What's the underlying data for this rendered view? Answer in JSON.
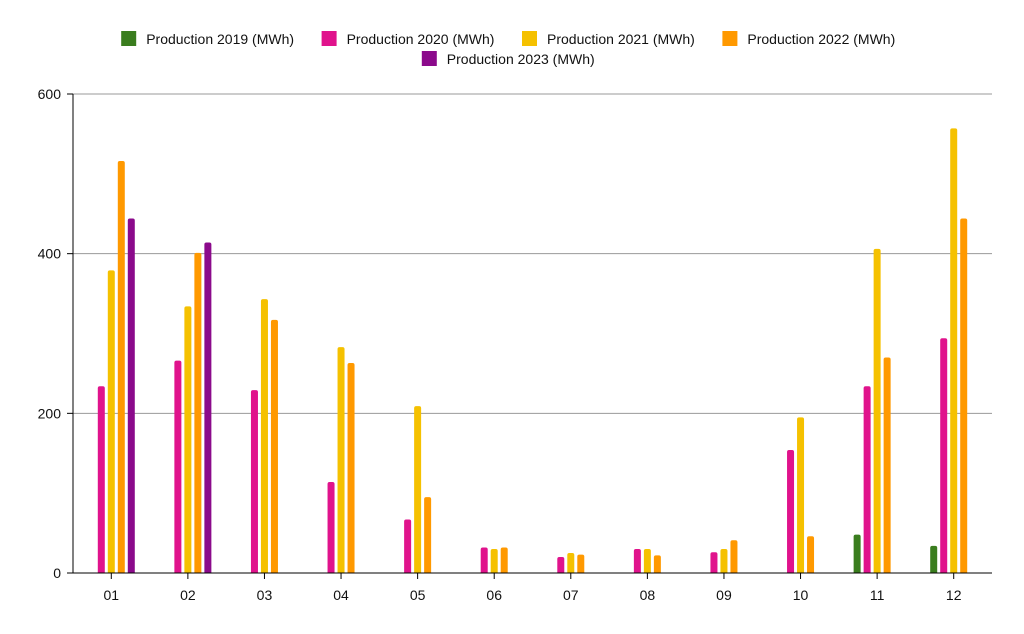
{
  "chart_data": {
    "type": "bar",
    "categories": [
      "01",
      "02",
      "03",
      "04",
      "05",
      "06",
      "07",
      "08",
      "09",
      "10",
      "11",
      "12"
    ],
    "series": [
      {
        "name": "Production 2019 (MWh)",
        "color": "#3a7d1e",
        "values": [
          0,
          0,
          0,
          0,
          0,
          0,
          0,
          0,
          0,
          0,
          48,
          34
        ]
      },
      {
        "name": "Production 2020 (MWh)",
        "color": "#e0138c",
        "values": [
          234,
          266,
          229,
          114,
          67,
          32,
          20,
          30,
          26,
          154,
          234,
          294
        ]
      },
      {
        "name": "Production 2021 (MWh)",
        "color": "#f5c100",
        "values": [
          379,
          334,
          343,
          283,
          209,
          30,
          25,
          30,
          30,
          195,
          406,
          557
        ]
      },
      {
        "name": "Production 2022 (MWh)",
        "color": "#ff9900",
        "values": [
          516,
          401,
          317,
          263,
          95,
          32,
          23,
          22,
          41,
          46,
          270,
          444
        ]
      },
      {
        "name": "Production 2023 (MWh)",
        "color": "#8b0a8b",
        "values": [
          444,
          414,
          0,
          0,
          0,
          0,
          0,
          0,
          0,
          0,
          0,
          0
        ]
      }
    ],
    "yticks": [
      0,
      200,
      400,
      600
    ],
    "ylim": [
      0,
      600
    ],
    "grid": true,
    "legend_position": "top-center"
  }
}
